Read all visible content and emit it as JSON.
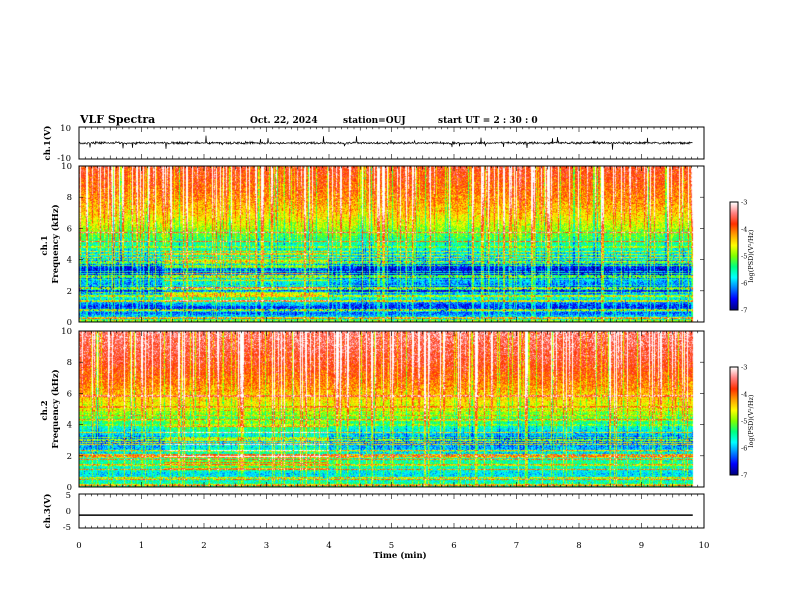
{
  "header": {
    "title": "VLF Spectra",
    "date": "Oct. 22, 2024",
    "station": "station=OUJ",
    "start_ut": "start  UT =  2 : 30 : 0"
  },
  "colors": {
    "palette": [
      "#000080",
      "#0000ff",
      "#0080ff",
      "#00ffff",
      "#00ff80",
      "#80ff00",
      "#ffff00",
      "#ffa000",
      "#ff3000",
      "#ff8080",
      "#ffffff"
    ],
    "waveform": "#000000"
  },
  "chart_data": [
    {
      "type": "line",
      "panel": "ch1-waveform",
      "ylabel": "ch.1(V)",
      "ylim": [
        -10,
        10
      ],
      "y_ticks": [
        "10",
        "-10"
      ],
      "xlim": [
        0,
        10
      ],
      "baseline": 0,
      "noise_amplitude": 1.5,
      "data_end_min": 9.82
    },
    {
      "type": "heatmap",
      "panel": "ch1-spectrogram",
      "ylabel": "ch.1\nFrequency  (kHz)",
      "ylim": [
        0,
        10
      ],
      "y_ticks": [
        "0",
        "2",
        "4",
        "6",
        "8",
        "10"
      ],
      "xlim": [
        0,
        10
      ],
      "data_end_min": 9.82,
      "colorbar": {
        "label": "log(PSD)(V²/Hz)",
        "range": [
          -7,
          -3
        ],
        "ticks": [
          "-3",
          "-4",
          "-5",
          "-6",
          "-7"
        ]
      },
      "band_profile": [
        {
          "f": 0.0,
          "level": -5.3
        },
        {
          "f": 0.5,
          "level": -6.3
        },
        {
          "f": 1.0,
          "level": -6.5
        },
        {
          "f": 1.6,
          "level": -5.6
        },
        {
          "f": 2.0,
          "level": -6.6
        },
        {
          "f": 2.6,
          "level": -6.0
        },
        {
          "f": 3.2,
          "level": -6.8
        },
        {
          "f": 4.0,
          "level": -6.0
        },
        {
          "f": 5.0,
          "level": -5.5
        },
        {
          "f": 6.0,
          "level": -4.9
        },
        {
          "f": 7.0,
          "level": -4.4
        },
        {
          "f": 8.0,
          "level": -4.1
        },
        {
          "f": 10.0,
          "level": -3.7
        }
      ]
    },
    {
      "type": "heatmap",
      "panel": "ch2-spectrogram",
      "ylabel": "ch.2\nFrequency  (kHz)",
      "ylim": [
        0,
        10
      ],
      "y_ticks": [
        "0",
        "2",
        "4",
        "6",
        "8",
        "10"
      ],
      "xlim": [
        0,
        10
      ],
      "data_end_min": 9.82,
      "colorbar": {
        "label": "log(PSD)(V²/Hz)",
        "range": [
          -7,
          -3
        ],
        "ticks": [
          "-3",
          "-4",
          "-5",
          "-6",
          "-7"
        ]
      },
      "band_profile": [
        {
          "f": 0.0,
          "level": -5.4
        },
        {
          "f": 0.8,
          "level": -5.9
        },
        {
          "f": 1.5,
          "level": -5.4
        },
        {
          "f": 2.2,
          "level": -5.9
        },
        {
          "f": 3.0,
          "level": -6.3
        },
        {
          "f": 3.6,
          "level": -5.8
        },
        {
          "f": 4.5,
          "level": -5.1
        },
        {
          "f": 5.5,
          "level": -4.5
        },
        {
          "f": 6.5,
          "level": -4.1
        },
        {
          "f": 8.0,
          "level": -3.7
        },
        {
          "f": 10.0,
          "level": -3.4
        }
      ]
    },
    {
      "type": "line",
      "panel": "ch3-waveform",
      "ylabel": "ch.3(V)",
      "ylim": [
        -5,
        5
      ],
      "y_ticks": [
        "5",
        "0",
        "-5"
      ],
      "xlim": [
        0,
        10
      ],
      "baseline": -1.2,
      "noise_amplitude": 0,
      "data_end_min": 9.82
    }
  ],
  "x_axis": {
    "label": "Time  (min)",
    "ticks": [
      "0",
      "1",
      "2",
      "3",
      "4",
      "5",
      "6",
      "7",
      "8",
      "9",
      "10"
    ]
  }
}
